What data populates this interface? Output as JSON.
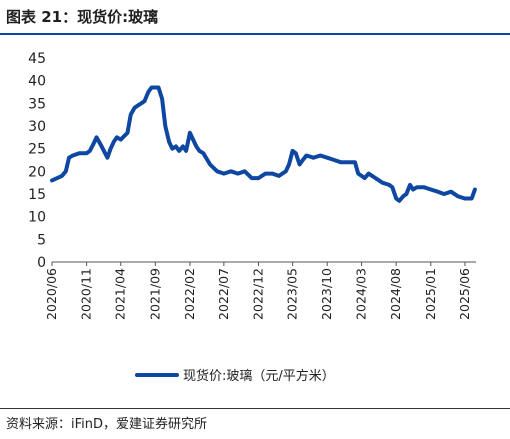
{
  "figure": {
    "title": "图表 21：现货价:玻璃",
    "source": "资料来源：iFinD，爱建证券研究所"
  },
  "chart_data": {
    "type": "line",
    "title": "",
    "xlabel": "",
    "ylabel": "",
    "ylim": [
      0,
      45
    ],
    "y_ticks": [
      0,
      5,
      10,
      15,
      20,
      25,
      30,
      35,
      40,
      45
    ],
    "x_tick_labels": [
      "2020/06",
      "2020/11",
      "2021/04",
      "2021/09",
      "2022/02",
      "2022/07",
      "2022/12",
      "2023/05",
      "2023/10",
      "2024/03",
      "2024/08",
      "2025/01",
      "2025/06"
    ],
    "grid": false,
    "legend_position": "bottom",
    "colors": {
      "line": "#0e47a1"
    },
    "series": [
      {
        "name": "现货价:玻璃（元/平方米）",
        "x": [
          "2020-06-01",
          "2020-07-15",
          "2020-08-01",
          "2020-08-15",
          "2020-09-01",
          "2020-10-01",
          "2020-11-01",
          "2020-11-15",
          "2020-12-01",
          "2020-12-15",
          "2021-01-01",
          "2021-02-01",
          "2021-02-15",
          "2021-03-01",
          "2021-03-15",
          "2021-04-01",
          "2021-05-01",
          "2021-05-15",
          "2021-06-01",
          "2021-06-15",
          "2021-07-01",
          "2021-07-15",
          "2021-08-01",
          "2021-08-15",
          "2021-09-01",
          "2021-09-15",
          "2021-10-01",
          "2021-10-15",
          "2021-11-01",
          "2021-11-15",
          "2021-12-01",
          "2021-12-15",
          "2022-01-01",
          "2022-01-15",
          "2022-02-01",
          "2022-02-15",
          "2022-03-01",
          "2022-03-15",
          "2022-04-01",
          "2022-05-01",
          "2022-06-01",
          "2022-07-01",
          "2022-08-01",
          "2022-09-01",
          "2022-10-01",
          "2022-11-01",
          "2022-12-01",
          "2023-01-01",
          "2023-02-01",
          "2023-03-01",
          "2023-04-01",
          "2023-04-15",
          "2023-05-01",
          "2023-05-15",
          "2023-06-01",
          "2023-06-15",
          "2023-07-01",
          "2023-08-01",
          "2023-09-01",
          "2023-10-01",
          "2023-11-01",
          "2023-12-01",
          "2024-01-01",
          "2024-02-01",
          "2024-02-15",
          "2024-03-01",
          "2024-03-15",
          "2024-04-01",
          "2024-05-01",
          "2024-06-01",
          "2024-07-01",
          "2024-07-15",
          "2024-08-01",
          "2024-08-15",
          "2024-09-01",
          "2024-09-15",
          "2024-10-01",
          "2024-10-15",
          "2024-11-01",
          "2024-12-01",
          "2025-01-01",
          "2025-02-01",
          "2025-03-01",
          "2025-04-01",
          "2025-05-01",
          "2025-06-01",
          "2025-07-01",
          "2025-07-15"
        ],
        "y": [
          18.0,
          19.0,
          20.0,
          23.0,
          23.5,
          24.0,
          24.0,
          24.5,
          26.0,
          27.5,
          26.0,
          23.0,
          25.0,
          26.5,
          27.5,
          27.0,
          28.5,
          32.5,
          34.0,
          34.5,
          35.0,
          35.5,
          37.5,
          38.5,
          38.5,
          38.5,
          36.0,
          30.0,
          26.5,
          25.0,
          25.5,
          24.5,
          25.5,
          24.5,
          28.5,
          27.0,
          25.5,
          24.5,
          24.0,
          21.5,
          20.0,
          19.5,
          20.0,
          19.5,
          20.0,
          18.5,
          18.5,
          19.5,
          19.5,
          19.0,
          20.0,
          21.5,
          24.5,
          24.0,
          21.5,
          22.5,
          23.5,
          23.0,
          23.5,
          23.0,
          22.5,
          22.0,
          22.0,
          22.0,
          19.5,
          19.0,
          18.5,
          19.5,
          18.5,
          17.5,
          17.0,
          16.5,
          14.0,
          13.5,
          14.5,
          15.0,
          17.0,
          16.0,
          16.5,
          16.5,
          16.0,
          15.5,
          15.0,
          15.5,
          14.5,
          14.0,
          14.0,
          16.0
        ]
      }
    ]
  }
}
